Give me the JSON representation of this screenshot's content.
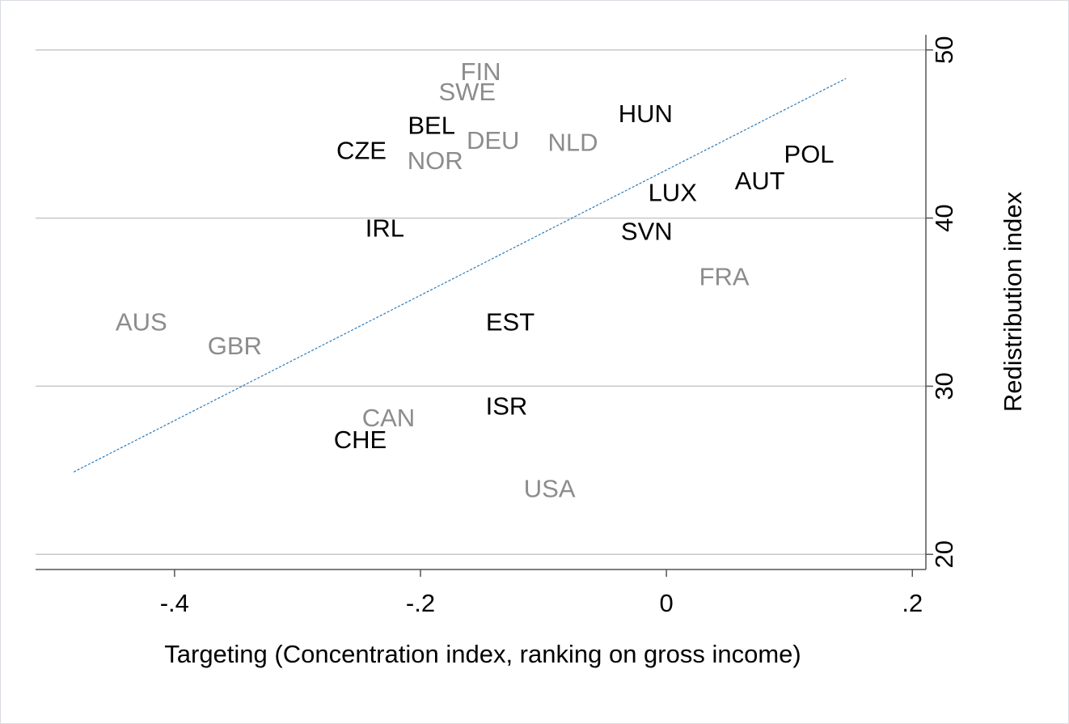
{
  "chart_data": {
    "type": "scatter",
    "x_label": "Targeting (Concentration index, ranking on gross income)",
    "y_label": "Redistribution index",
    "labels": [
      "FIN",
      "SWE",
      "BEL",
      "DEU",
      "NLD",
      "HUN",
      "CZE",
      "NOR",
      "POL",
      "AUT",
      "LUX",
      "IRL",
      "SVN",
      "FRA",
      "AUS",
      "GBR",
      "EST",
      "ISR",
      "CAN",
      "CHE",
      "USA"
    ],
    "x": [
      -0.151,
      -0.162,
      -0.191,
      -0.141,
      -0.076,
      -0.017,
      -0.248,
      -0.188,
      0.116,
      0.076,
      0.005,
      -0.229,
      -0.016,
      0.047,
      -0.427,
      -0.351,
      -0.127,
      -0.13,
      -0.226,
      -0.249,
      -0.095
    ],
    "y": [
      48.6,
      47.4,
      45.4,
      44.5,
      44.4,
      46.1,
      43.9,
      43.3,
      43.7,
      42.1,
      41.4,
      39.3,
      39.1,
      36.4,
      33.7,
      32.3,
      33.7,
      28.7,
      28.0,
      26.7,
      23.8
    ],
    "colors": [
      "#8c8c8c",
      "#8c8c8c",
      "#000000",
      "#8c8c8c",
      "#8c8c8c",
      "#000000",
      "#000000",
      "#8c8c8c",
      "#000000",
      "#000000",
      "#000000",
      "#000000",
      "#000000",
      "#8c8c8c",
      "#8c8c8c",
      "#8c8c8c",
      "#000000",
      "#000000",
      "#8c8c8c",
      "#000000",
      "#8c8c8c"
    ],
    "fit": {
      "x": [
        -0.482,
        0.146
      ],
      "y": [
        24.9,
        48.3
      ],
      "color": "#2a7ab8"
    },
    "xlim": [
      -0.513,
      0.211
    ],
    "ylim": [
      19.1,
      50.9
    ],
    "xticks": [
      {
        "value": -0.4,
        "label": "-.4"
      },
      {
        "value": -0.2,
        "label": "-.2"
      },
      0,
      {
        "value": 0.2,
        "label": ".2"
      }
    ],
    "yticks": [
      20,
      30,
      40,
      50
    ],
    "grid": true,
    "y_axis_side": "right"
  }
}
